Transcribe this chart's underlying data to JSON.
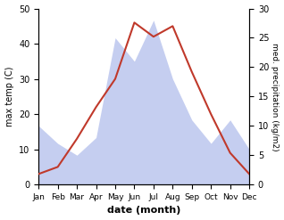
{
  "months": [
    "Jan",
    "Feb",
    "Mar",
    "Apr",
    "May",
    "Jun",
    "Jul",
    "Aug",
    "Sep",
    "Oct",
    "Nov",
    "Dec"
  ],
  "temperature": [
    3,
    5,
    13,
    22,
    30,
    46,
    42,
    45,
    32,
    20,
    9,
    3
  ],
  "precipitation": [
    10,
    7,
    5,
    8,
    25,
    21,
    28,
    18,
    11,
    7,
    11,
    6
  ],
  "temp_color": "#c0392b",
  "precip_fill_color": "#c5cef0",
  "precip_edge_color": "#aab4df",
  "temp_ylim": [
    0,
    50
  ],
  "precip_ylim": [
    0,
    30
  ],
  "temp_yticks": [
    0,
    10,
    20,
    30,
    40,
    50
  ],
  "precip_yticks": [
    0,
    5,
    10,
    15,
    20,
    25,
    30
  ],
  "xlabel": "date (month)",
  "ylabel_left": "max temp (C)",
  "ylabel_right": "med. precipitation (kg/m2)",
  "bg_color": "#ffffff"
}
